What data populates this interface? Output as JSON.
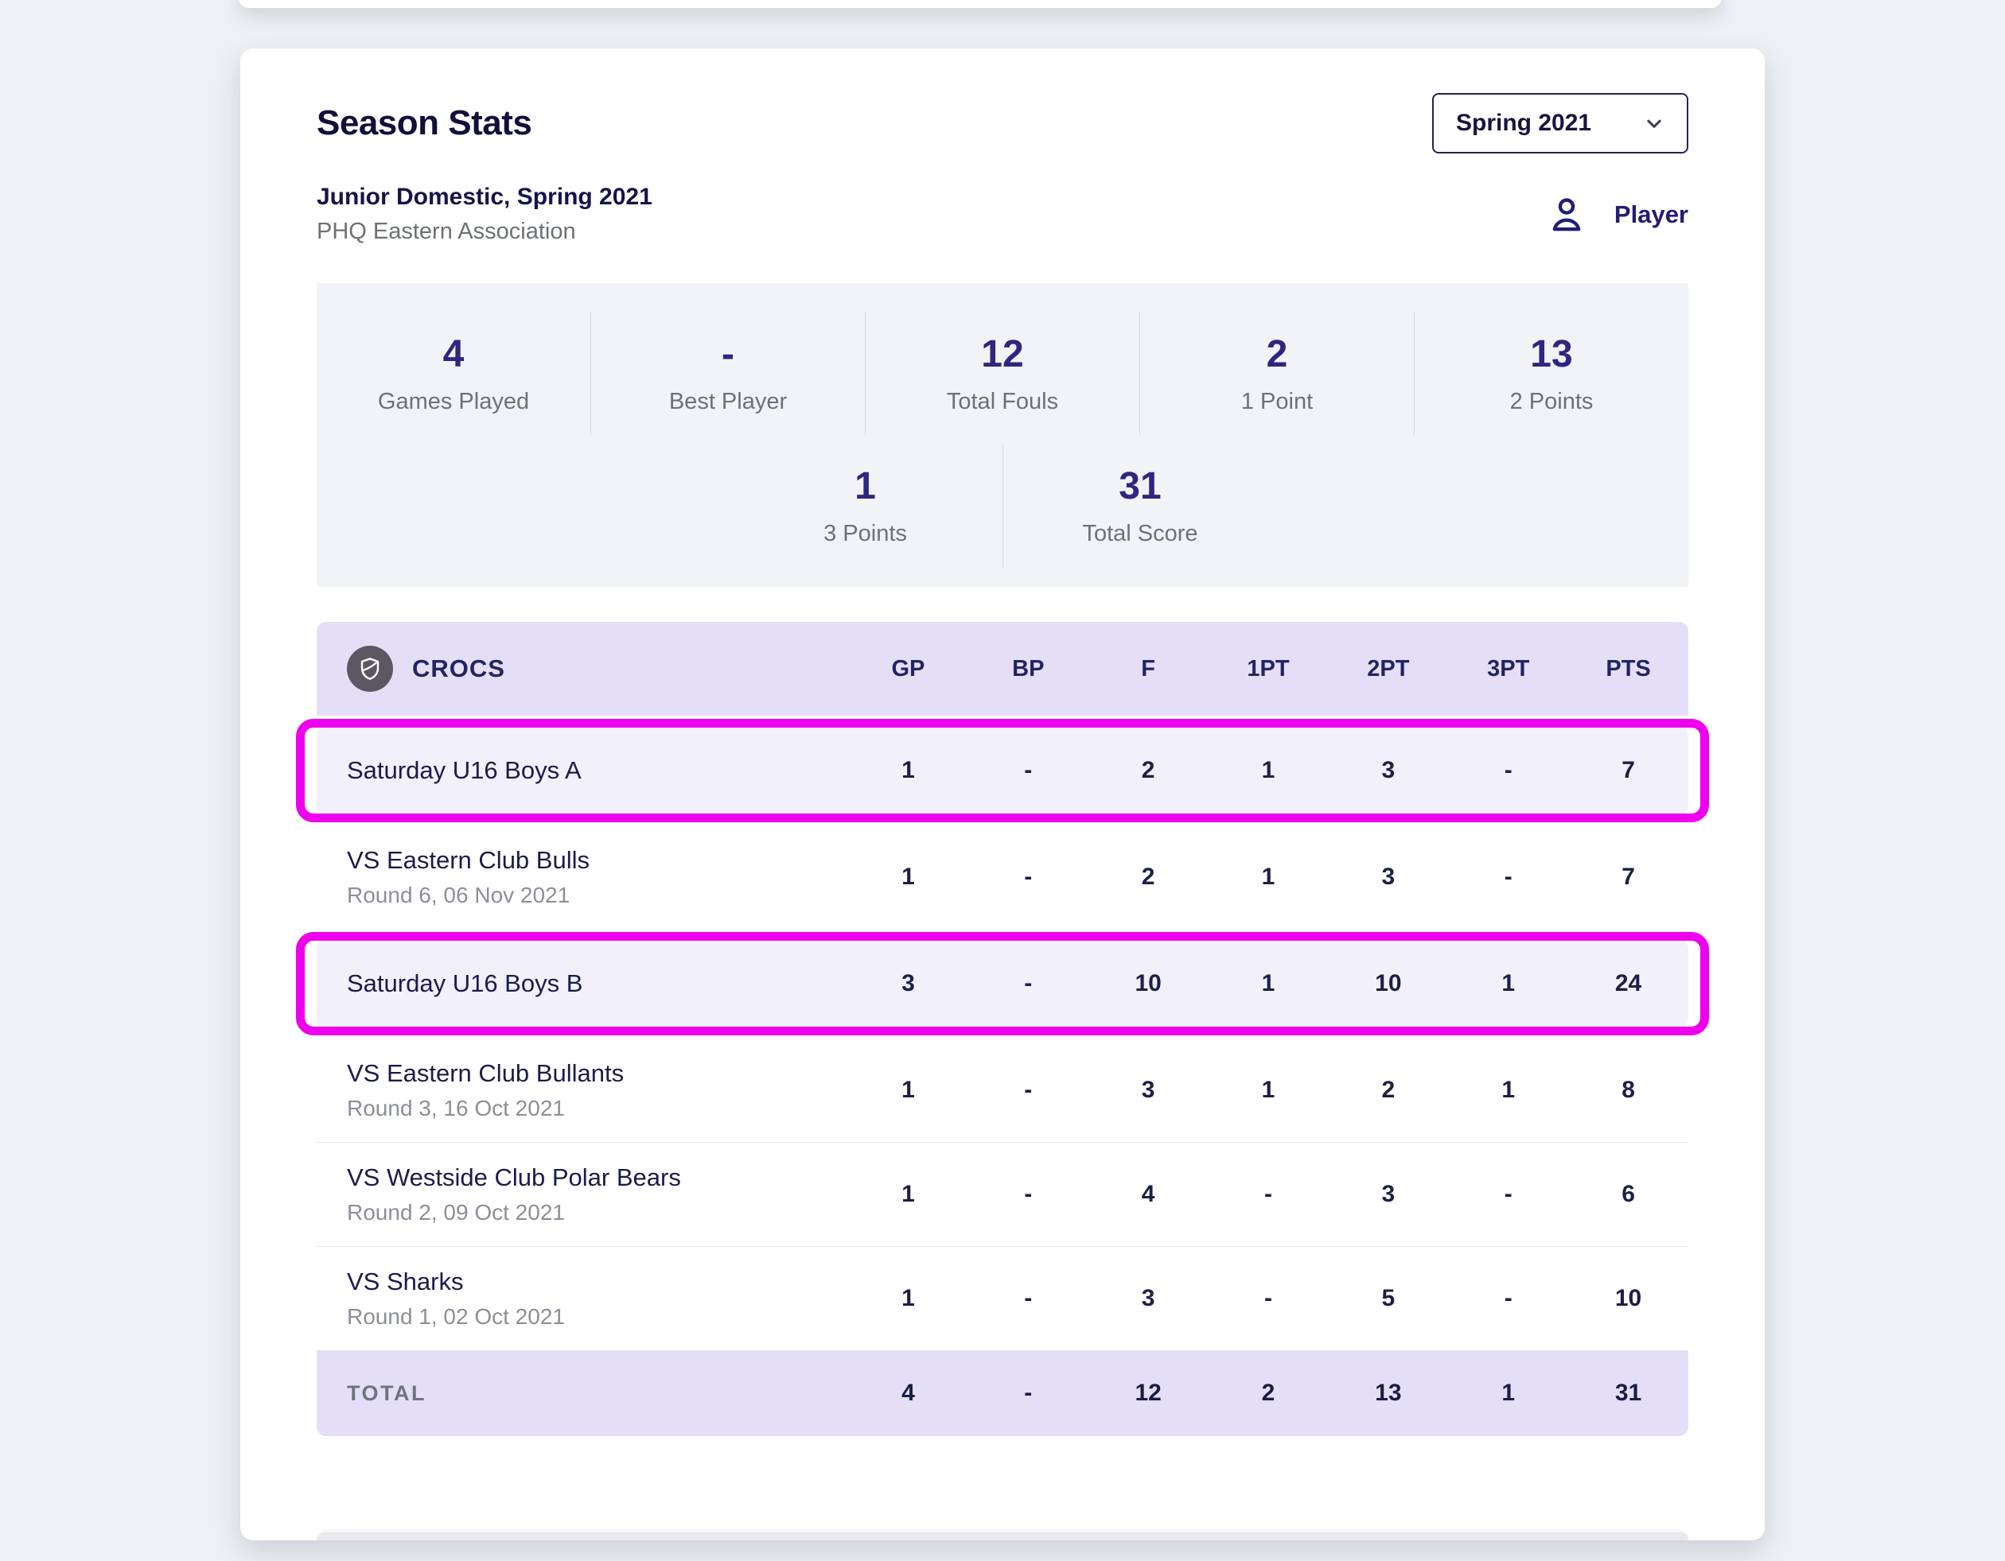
{
  "title": "Season Stats",
  "season_selector": {
    "value": "Spring 2021",
    "icon": "chevron-down-icon"
  },
  "competition": {
    "name": "Junior Domestic, Spring 2021",
    "association": "PHQ Eastern Association"
  },
  "player_toggle": {
    "label": "Player",
    "icon": "person-icon"
  },
  "summary": {
    "row1": [
      {
        "value": "4",
        "label": "Games Played"
      },
      {
        "value": "-",
        "label": "Best Player"
      },
      {
        "value": "12",
        "label": "Total Fouls"
      },
      {
        "value": "2",
        "label": "1 Point"
      },
      {
        "value": "13",
        "label": "2 Points"
      }
    ],
    "row2": [
      {
        "value": "1",
        "label": "3 Points"
      },
      {
        "value": "31",
        "label": "Total Score"
      }
    ]
  },
  "table": {
    "team": "CROCS",
    "team_badge_icon": "shield-icon",
    "columns": [
      "GP",
      "BP",
      "F",
      "1PT",
      "2PT",
      "3PT",
      "PTS"
    ],
    "rows": [
      {
        "name": "Saturday U16 Boys A",
        "sub": "",
        "highlighted": true,
        "values": [
          "1",
          "-",
          "2",
          "1",
          "3",
          "-",
          "7"
        ]
      },
      {
        "name": "VS Eastern Club Bulls",
        "sub": "Round 6, 06 Nov 2021",
        "highlighted": false,
        "values": [
          "1",
          "-",
          "2",
          "1",
          "3",
          "-",
          "7"
        ]
      },
      {
        "name": "Saturday U16 Boys B",
        "sub": "",
        "highlighted": true,
        "values": [
          "3",
          "-",
          "10",
          "1",
          "10",
          "1",
          "24"
        ]
      },
      {
        "name": "VS Eastern Club Bullants",
        "sub": "Round 3, 16 Oct 2021",
        "highlighted": false,
        "values": [
          "1",
          "-",
          "3",
          "1",
          "2",
          "1",
          "8"
        ]
      },
      {
        "name": "VS Westside Club Polar Bears",
        "sub": "Round 2, 09 Oct 2021",
        "highlighted": false,
        "values": [
          "1",
          "-",
          "4",
          "-",
          "3",
          "-",
          "6"
        ]
      },
      {
        "name": "VS Sharks",
        "sub": "Round 1, 02 Oct 2021",
        "highlighted": false,
        "values": [
          "1",
          "-",
          "3",
          "-",
          "5",
          "-",
          "10"
        ]
      }
    ],
    "total": {
      "label": "TOTAL",
      "values": [
        "4",
        "-",
        "12",
        "2",
        "13",
        "1",
        "31"
      ]
    }
  },
  "colors": {
    "accent_magenta": "#ee00ee",
    "header_lavender": "#e4dff7",
    "highlight_row_bg": "#f2f0fa",
    "stat_number_indigo": "#2e2680",
    "navy_text": "#15153f",
    "gray_text": "#6d7079"
  }
}
